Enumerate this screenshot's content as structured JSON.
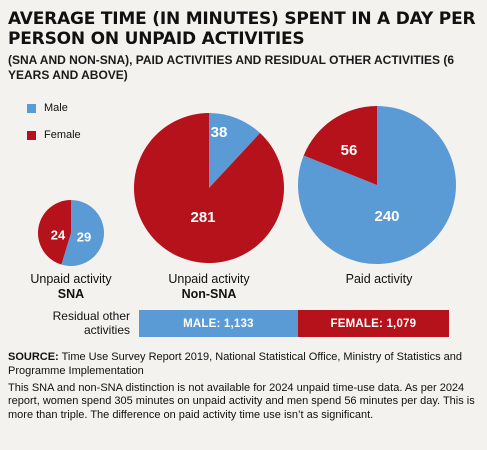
{
  "title": "AVERAGE TIME (IN MINUTES) SPENT IN A DAY PER PERSON ON UNPAID ACTIVITIES",
  "subtitle": "(SNA AND NON-SNA), PAID ACTIVITIES AND RESIDUAL OTHER ACTIVITIES (6 YEARS AND ABOVE)",
  "colors": {
    "male": "#5b9bd5",
    "female": "#b5121b"
  },
  "chart_data": {
    "type": "pie",
    "legend": [
      "Male",
      "Female"
    ],
    "legend_placement": "top-left",
    "pies": [
      {
        "label": "Unpaid activity",
        "sublabel": "SNA",
        "male": 29,
        "female": 24
      },
      {
        "label": "Unpaid activity",
        "sublabel": "Non-SNA",
        "male": 38,
        "female": 281
      },
      {
        "label": "Paid activity",
        "sublabel": "",
        "male": 240,
        "female": 56
      }
    ],
    "residual": {
      "label": "Residual other activities",
      "male_label": "MALE",
      "female_label": "FEMALE",
      "male": "1,133",
      "female": "1,079"
    }
  },
  "source_label": "SOURCE:",
  "source_text": "Time Use Survey Report 2019, National Statistical Office, Ministry of Statistics and Programme Implementation",
  "note": "This SNA and non-SNA distinction is not available for 2024 unpaid time-use data. As per 2024 report, women spend 305 minutes on unpaid activity and men spend 56 minutes per day. This is more than triple. The difference on paid activity time use isn’t as significant."
}
